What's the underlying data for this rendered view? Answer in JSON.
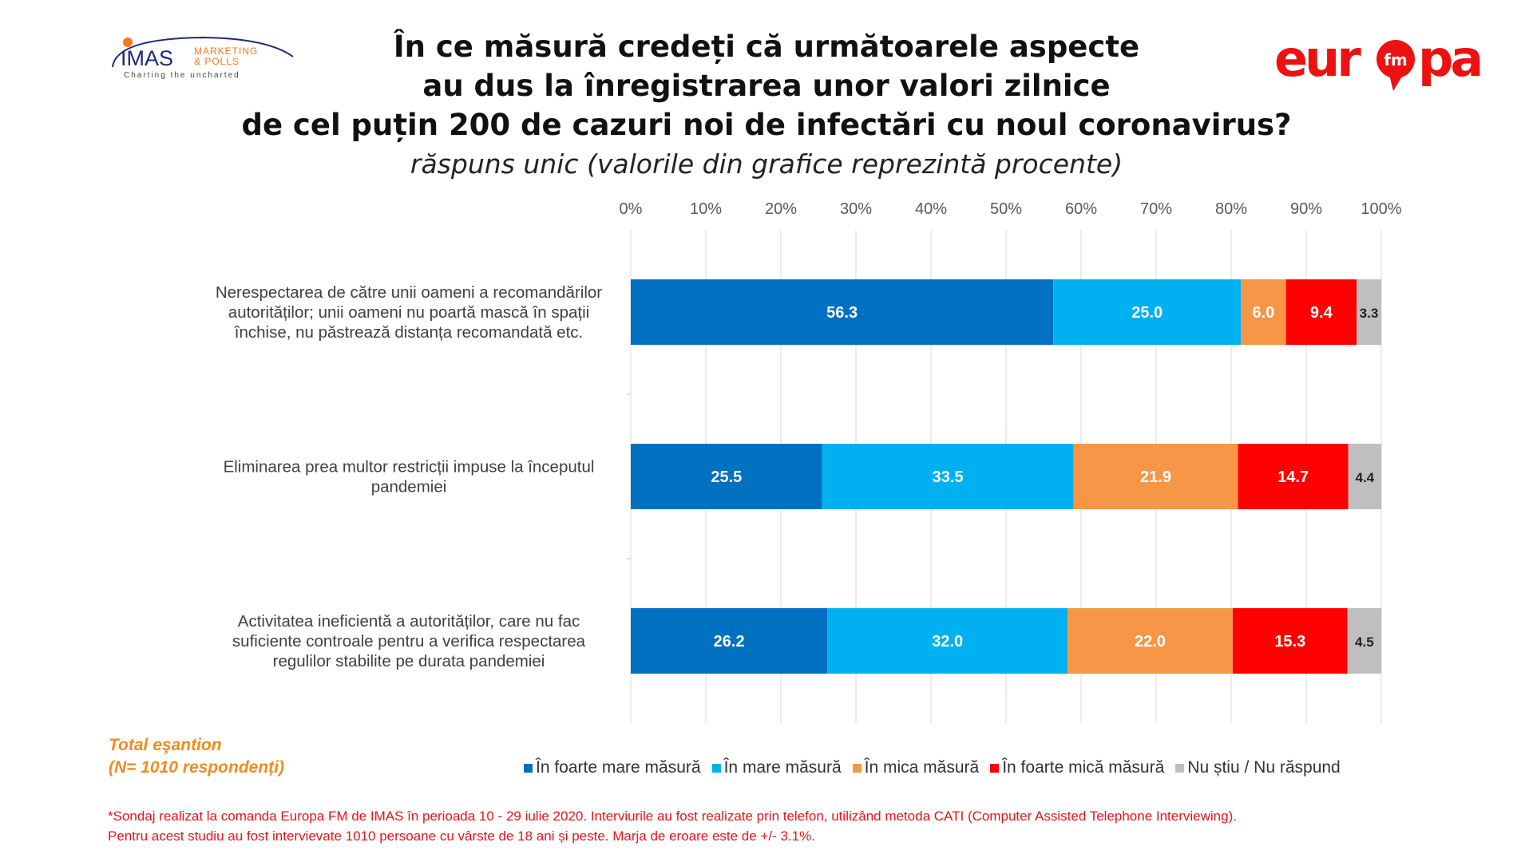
{
  "header": {
    "title_lines": [
      "În ce măsură credeți că următoarele aspecte",
      "au dus la înregistrarea unor valori zilnice",
      "de cel puțin 200 de cazuri noi de infectări cu noul coronavirus?"
    ],
    "subtitle": "răspuns unic (valorile din grafice reprezintă procente)",
    "imas_logo": {
      "name": "IMAS",
      "line1": "MARKETING",
      "line2": "& POLLS",
      "tagline": "Charting the uncharted"
    },
    "europa_logo": {
      "text": "europa",
      "fm": "fm"
    },
    "watermark": "europa"
  },
  "sample": {
    "line1": "Total eşantion",
    "line2": "(N= 1010 respondenți)"
  },
  "footnote": {
    "line1": "*Sondaj realizat la comanda Europa FM de IMAS în perioada  10 - 29 iulie 2020. Interviurile au fost realizate prin telefon, utilizând metoda CATI (Computer Assisted Telephone Interviewing).",
    "line2": "Pentru acest studiu au fost intervievate 1010 persoane cu vârste de 18 ani și peste. Marja de eroare este de +/- 3.1%."
  },
  "chart_data": {
    "type": "bar",
    "orientation": "horizontal-stacked-100",
    "title": "În ce măsură credeți că următoarele aspecte au dus la înregistrarea unor valori zilnice de cel puțin 200 de cazuri noi de infectări cu noul coronavirus?",
    "xlim": [
      0,
      100
    ],
    "xticks": [
      "0%",
      "10%",
      "20%",
      "30%",
      "40%",
      "50%",
      "60%",
      "70%",
      "80%",
      "90%",
      "100%"
    ],
    "grid": true,
    "legend_position": "bottom",
    "categories": [
      [
        "Nerespectarea de către unii oameni a recomandărilor",
        "autorităților; unii oameni nu poartă mască în spații",
        "închise, nu păstrează distanța recomandată etc."
      ],
      [
        "Eliminarea prea multor restricții impuse la începutul",
        "pandemiei"
      ],
      [
        "Activitatea ineficientă a autorităților, care nu fac",
        "suficiente controale pentru a verifica respectarea",
        "regulilor stabilite pe durata pandemiei"
      ]
    ],
    "series": [
      {
        "name": "În foarte mare măsură",
        "color": "#0070C0",
        "label_color": "#ffffff",
        "values": [
          56.3,
          25.5,
          26.2
        ]
      },
      {
        "name": "În mare măsură",
        "color": "#00B0F0",
        "label_color": "#ffffff",
        "values": [
          25.0,
          33.5,
          32.0
        ]
      },
      {
        "name": "În mica măsură",
        "color": "#F79646",
        "label_color": "#ffffff",
        "values": [
          6.0,
          21.9,
          22.0
        ]
      },
      {
        "name": "În foarte mică măsură",
        "color": "#FF0000",
        "label_color": "#ffffff",
        "values": [
          9.4,
          14.7,
          15.3
        ]
      },
      {
        "name": "Nu știu / Nu răspund",
        "color": "#BFBFBF",
        "label_color": "#222222",
        "values": [
          3.3,
          4.4,
          4.5
        ]
      }
    ]
  }
}
